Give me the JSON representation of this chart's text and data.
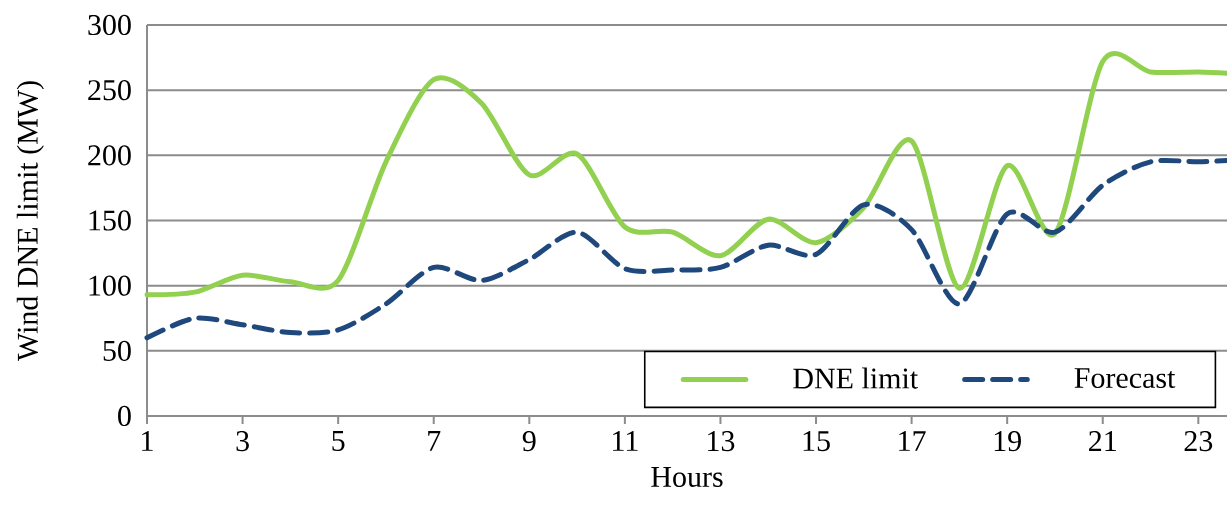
{
  "chart_data": {
    "type": "line",
    "xlabel": "Hours",
    "ylabel": "Wind DNE limit (MW)",
    "x": [
      1,
      2,
      3,
      4,
      5,
      6,
      7,
      8,
      9,
      10,
      11,
      12,
      13,
      14,
      15,
      16,
      17,
      18,
      19,
      20,
      21,
      22,
      23,
      23.6
    ],
    "series": [
      {
        "name": "DNE limit",
        "color": "#92d050",
        "line_style": "solid",
        "values": [
          93,
          95,
          108,
          103,
          104,
          195,
          258,
          240,
          185,
          201,
          145,
          141,
          123,
          151,
          133,
          160,
          211,
          98,
          192,
          140,
          272,
          264,
          264,
          263
        ]
      },
      {
        "name": "Forecast",
        "color": "#1f497d",
        "line_style": "dashed",
        "values": [
          60,
          75,
          70,
          64,
          66,
          86,
          114,
          104,
          120,
          141,
          113,
          112,
          114,
          131,
          124,
          162,
          143,
          86,
          155,
          141,
          177,
          195,
          195,
          196
        ]
      }
    ],
    "xlim": [
      1,
      23.6
    ],
    "ylim": [
      0,
      300
    ],
    "xticks": [
      1,
      3,
      5,
      7,
      9,
      11,
      13,
      15,
      17,
      19,
      21,
      23
    ],
    "yticks": [
      0,
      50,
      100,
      150,
      200,
      250,
      300
    ],
    "grid": "y",
    "legend": "bottom right",
    "marker": "none"
  }
}
